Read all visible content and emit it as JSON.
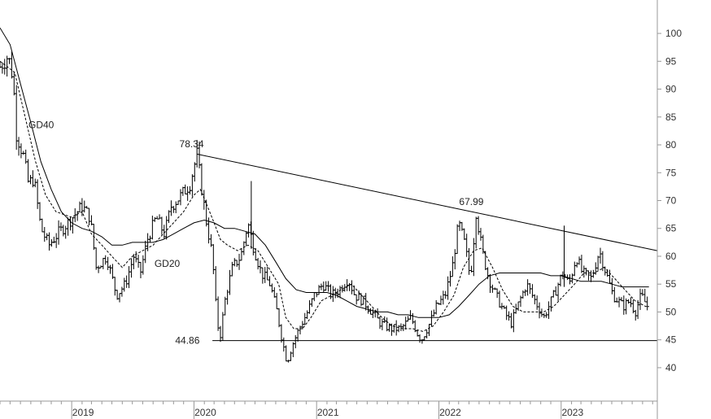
{
  "chart_data": {
    "type": "bar",
    "y_axis_side": "right",
    "ylim": [
      34,
      106
    ],
    "y_ticks": [
      "100",
      "95",
      "90",
      "85",
      "80",
      "75",
      "70",
      "65",
      "60",
      "55",
      "50",
      "45",
      "40"
    ],
    "x_ticks": [
      {
        "label": "2019",
        "date": "2019-01-01"
      },
      {
        "label": "2020",
        "date": "2020-01-01"
      },
      {
        "label": "2021",
        "date": "2021-01-01"
      },
      {
        "label": "2022",
        "date": "2022-01-01"
      },
      {
        "label": "2023",
        "date": "2023-01-01"
      }
    ],
    "xlim": [
      "2018-06-01",
      "2023-10-15"
    ],
    "price_keypoints": [
      [
        "2018-06-01",
        94
      ],
      [
        "2018-06-25",
        96
      ],
      [
        "2018-07-10",
        92
      ],
      [
        "2018-07-20",
        82
      ],
      [
        "2018-08-10",
        78
      ],
      [
        "2018-08-25",
        73
      ],
      [
        "2018-09-10",
        74
      ],
      [
        "2018-10-01",
        65
      ],
      [
        "2018-10-25",
        62
      ],
      [
        "2018-11-20",
        64
      ],
      [
        "2018-12-20",
        66
      ],
      [
        "2019-02-01",
        69
      ],
      [
        "2019-02-25",
        67
      ],
      [
        "2019-03-15",
        58
      ],
      [
        "2019-04-15",
        60
      ],
      [
        "2019-05-15",
        53
      ],
      [
        "2019-06-10",
        55
      ],
      [
        "2019-07-05",
        60
      ],
      [
        "2019-07-25",
        57
      ],
      [
        "2019-08-15",
        63
      ],
      [
        "2019-09-10",
        67
      ],
      [
        "2019-10-05",
        64
      ],
      [
        "2019-10-25",
        69
      ],
      [
        "2019-11-25",
        71
      ],
      [
        "2019-12-20",
        73
      ],
      [
        "2020-01-10",
        78.34
      ],
      [
        "2020-01-22",
        73
      ],
      [
        "2020-02-05",
        67
      ],
      [
        "2020-02-25",
        60
      ],
      [
        "2020-03-10",
        48
      ],
      [
        "2020-03-20",
        46
      ],
      [
        "2020-04-05",
        53
      ],
      [
        "2020-04-25",
        58
      ],
      [
        "2020-05-20",
        60
      ],
      [
        "2020-06-10",
        66
      ],
      [
        "2020-06-25",
        62
      ],
      [
        "2020-07-20",
        57
      ],
      [
        "2020-08-15",
        55
      ],
      [
        "2020-09-05",
        50
      ],
      [
        "2020-09-20",
        45
      ],
      [
        "2020-10-05",
        41
      ],
      [
        "2020-10-20",
        44
      ],
      [
        "2020-11-10",
        47
      ],
      [
        "2020-12-05",
        50
      ],
      [
        "2020-12-25",
        53
      ],
      [
        "2021-01-20",
        55
      ],
      [
        "2021-02-15",
        53
      ],
      [
        "2021-03-10",
        54
      ],
      [
        "2021-04-05",
        56
      ],
      [
        "2021-04-25",
        53
      ],
      [
        "2021-05-20",
        52
      ],
      [
        "2021-06-15",
        50
      ],
      [
        "2021-07-10",
        48
      ],
      [
        "2021-08-10",
        47
      ],
      [
        "2021-09-10",
        47
      ],
      [
        "2021-10-10",
        49
      ],
      [
        "2021-10-30",
        46
      ],
      [
        "2021-11-10",
        45
      ],
      [
        "2021-12-05",
        48
      ],
      [
        "2021-12-25",
        51
      ],
      [
        "2022-01-20",
        53
      ],
      [
        "2022-02-10",
        58
      ],
      [
        "2022-03-01",
        66
      ],
      [
        "2022-03-20",
        62
      ],
      [
        "2022-04-05",
        56
      ],
      [
        "2022-04-22",
        67.99
      ],
      [
        "2022-05-10",
        61
      ],
      [
        "2022-05-30",
        56
      ],
      [
        "2022-06-20",
        53
      ],
      [
        "2022-07-15",
        50
      ],
      [
        "2022-08-05",
        48
      ],
      [
        "2022-08-30",
        52
      ],
      [
        "2022-09-20",
        55
      ],
      [
        "2022-10-15",
        52
      ],
      [
        "2022-11-10",
        49
      ],
      [
        "2022-12-10",
        53
      ],
      [
        "2023-01-05",
        57
      ],
      [
        "2023-01-25",
        55
      ],
      [
        "2023-02-15",
        60
      ],
      [
        "2023-03-05",
        57
      ],
      [
        "2023-04-01",
        56
      ],
      [
        "2023-04-25",
        61
      ],
      [
        "2023-05-15",
        57
      ],
      [
        "2023-06-05",
        53
      ],
      [
        "2023-07-05",
        51
      ],
      [
        "2023-07-25",
        52
      ],
      [
        "2023-08-10",
        50
      ],
      [
        "2023-08-28",
        53
      ],
      [
        "2023-09-20",
        50.5
      ]
    ],
    "spike_bars": [
      {
        "date": "2020-06-20",
        "high": 73.5
      },
      {
        "date": "2023-01-10",
        "high": 65.5
      }
    ],
    "ma20_keypoints": [
      [
        "2018-06-01",
        95
      ],
      [
        "2018-07-15",
        93
      ],
      [
        "2018-08-15",
        85
      ],
      [
        "2018-09-15",
        77
      ],
      [
        "2018-10-15",
        71
      ],
      [
        "2018-11-15",
        68
      ],
      [
        "2019-01-01",
        67
      ],
      [
        "2019-02-01",
        68
      ],
      [
        "2019-03-01",
        64
      ],
      [
        "2019-04-01",
        62
      ],
      [
        "2019-05-01",
        60
      ],
      [
        "2019-06-01",
        58
      ],
      [
        "2019-07-01",
        60
      ],
      [
        "2019-08-01",
        61
      ],
      [
        "2019-09-01",
        62
      ],
      [
        "2019-10-01",
        64
      ],
      [
        "2019-11-01",
        66
      ],
      [
        "2019-12-01",
        68
      ],
      [
        "2020-01-01",
        71
      ],
      [
        "2020-01-20",
        72
      ],
      [
        "2020-02-10",
        69
      ],
      [
        "2020-03-01",
        66
      ],
      [
        "2020-03-20",
        63
      ],
      [
        "2020-04-10",
        62
      ],
      [
        "2020-05-10",
        61
      ],
      [
        "2020-06-10",
        62
      ],
      [
        "2020-07-10",
        61
      ],
      [
        "2020-08-10",
        58
      ],
      [
        "2020-09-10",
        55
      ],
      [
        "2020-10-01",
        49
      ],
      [
        "2020-10-25",
        47
      ],
      [
        "2020-11-20",
        47
      ],
      [
        "2020-12-15",
        49
      ],
      [
        "2021-01-15",
        52
      ],
      [
        "2021-02-15",
        53
      ],
      [
        "2021-03-15",
        54
      ],
      [
        "2021-04-15",
        55
      ],
      [
        "2021-05-15",
        53
      ],
      [
        "2021-06-15",
        51
      ],
      [
        "2021-07-15",
        49
      ],
      [
        "2021-08-15",
        47.5
      ],
      [
        "2021-09-15",
        47
      ],
      [
        "2021-10-15",
        47
      ],
      [
        "2021-11-15",
        46.5
      ],
      [
        "2021-12-15",
        47.5
      ],
      [
        "2022-01-15",
        50
      ],
      [
        "2022-02-15",
        53
      ],
      [
        "2022-03-15",
        58
      ],
      [
        "2022-04-15",
        61
      ],
      [
        "2022-05-10",
        61.5
      ],
      [
        "2022-06-10",
        58
      ],
      [
        "2022-07-10",
        54
      ],
      [
        "2022-08-10",
        51
      ],
      [
        "2022-09-10",
        50
      ],
      [
        "2022-10-10",
        50
      ],
      [
        "2022-11-10",
        50
      ],
      [
        "2022-12-10",
        51
      ],
      [
        "2023-01-10",
        53
      ],
      [
        "2023-02-10",
        55
      ],
      [
        "2023-03-10",
        57
      ],
      [
        "2023-04-10",
        57
      ],
      [
        "2023-05-10",
        58
      ],
      [
        "2023-06-10",
        56
      ],
      [
        "2023-07-10",
        54
      ],
      [
        "2023-08-10",
        52
      ],
      [
        "2023-09-10",
        51
      ],
      [
        "2023-09-20",
        51
      ]
    ],
    "ma40_keypoints": [
      [
        "2018-06-01",
        101
      ],
      [
        "2018-07-01",
        98
      ],
      [
        "2018-08-01",
        91
      ],
      [
        "2018-09-01",
        84
      ],
      [
        "2018-10-01",
        77
      ],
      [
        "2018-11-01",
        72
      ],
      [
        "2018-12-01",
        68
      ],
      [
        "2019-01-01",
        66
      ],
      [
        "2019-02-01",
        65
      ],
      [
        "2019-03-01",
        64.5
      ],
      [
        "2019-04-01",
        63.5
      ],
      [
        "2019-05-01",
        62
      ],
      [
        "2019-06-01",
        62
      ],
      [
        "2019-07-01",
        62.5
      ],
      [
        "2019-08-01",
        62.5
      ],
      [
        "2019-09-01",
        62.5
      ],
      [
        "2019-10-01",
        63
      ],
      [
        "2019-11-01",
        64
      ],
      [
        "2019-12-01",
        65
      ],
      [
        "2020-01-01",
        66
      ],
      [
        "2020-02-01",
        66.5
      ],
      [
        "2020-03-01",
        66
      ],
      [
        "2020-04-01",
        65
      ],
      [
        "2020-05-01",
        65
      ],
      [
        "2020-06-01",
        64.5
      ],
      [
        "2020-07-01",
        64
      ],
      [
        "2020-08-01",
        62
      ],
      [
        "2020-09-01",
        59
      ],
      [
        "2020-10-01",
        56
      ],
      [
        "2020-11-01",
        54
      ],
      [
        "2020-12-01",
        53.5
      ],
      [
        "2021-01-01",
        53.5
      ],
      [
        "2021-02-01",
        53.5
      ],
      [
        "2021-03-01",
        53
      ],
      [
        "2021-04-01",
        52
      ],
      [
        "2021-05-01",
        51
      ],
      [
        "2021-06-01",
        50.5
      ],
      [
        "2021-07-01",
        50
      ],
      [
        "2021-08-01",
        50
      ],
      [
        "2021-09-01",
        49.5
      ],
      [
        "2021-10-01",
        49.5
      ],
      [
        "2021-11-01",
        49
      ],
      [
        "2021-12-01",
        49
      ],
      [
        "2022-01-01",
        49
      ],
      [
        "2022-02-01",
        49.5
      ],
      [
        "2022-03-01",
        51
      ],
      [
        "2022-04-01",
        53
      ],
      [
        "2022-05-01",
        55
      ],
      [
        "2022-06-01",
        56.5
      ],
      [
        "2022-07-01",
        57
      ],
      [
        "2022-08-01",
        57
      ],
      [
        "2022-09-01",
        57
      ],
      [
        "2022-10-01",
        57
      ],
      [
        "2022-11-01",
        57
      ],
      [
        "2022-12-01",
        56.5
      ],
      [
        "2023-01-01",
        56.5
      ],
      [
        "2023-02-01",
        56
      ],
      [
        "2023-03-01",
        55.5
      ],
      [
        "2023-04-01",
        55.5
      ],
      [
        "2023-05-01",
        55.5
      ],
      [
        "2023-06-01",
        55
      ],
      [
        "2023-07-01",
        54.5
      ],
      [
        "2023-08-01",
        54.5
      ],
      [
        "2023-09-01",
        54.5
      ],
      [
        "2023-09-20",
        54.5
      ]
    ],
    "trendline": {
      "from": [
        "2020-01-10",
        78.34
      ],
      "to": [
        "2023-10-15",
        61
      ]
    },
    "support": {
      "from": [
        "2020-02-25",
        44.86
      ],
      "to": [
        "2023-10-15",
        44.86
      ]
    },
    "annotations": {
      "gd40": "GD40",
      "gd20": "GD20",
      "peak_2020": "78.34",
      "peak_2022": "67.99",
      "support_level": "44.86"
    },
    "annotation_anchors": {
      "gd40": [
        "2018-08-25",
        83
      ],
      "gd20": [
        "2019-09-05",
        58.7
      ],
      "peak_2020": [
        "2019-12-25",
        79.6
      ],
      "peak_2022": [
        "2022-04-08",
        69.2
      ],
      "support_level": [
        "2020-01-30",
        44.86
      ]
    },
    "colors": {
      "price": "#000000",
      "ma20": "#000000",
      "ma40": "#000000",
      "axis": "#999999",
      "text": "#333333"
    },
    "grid": false
  }
}
